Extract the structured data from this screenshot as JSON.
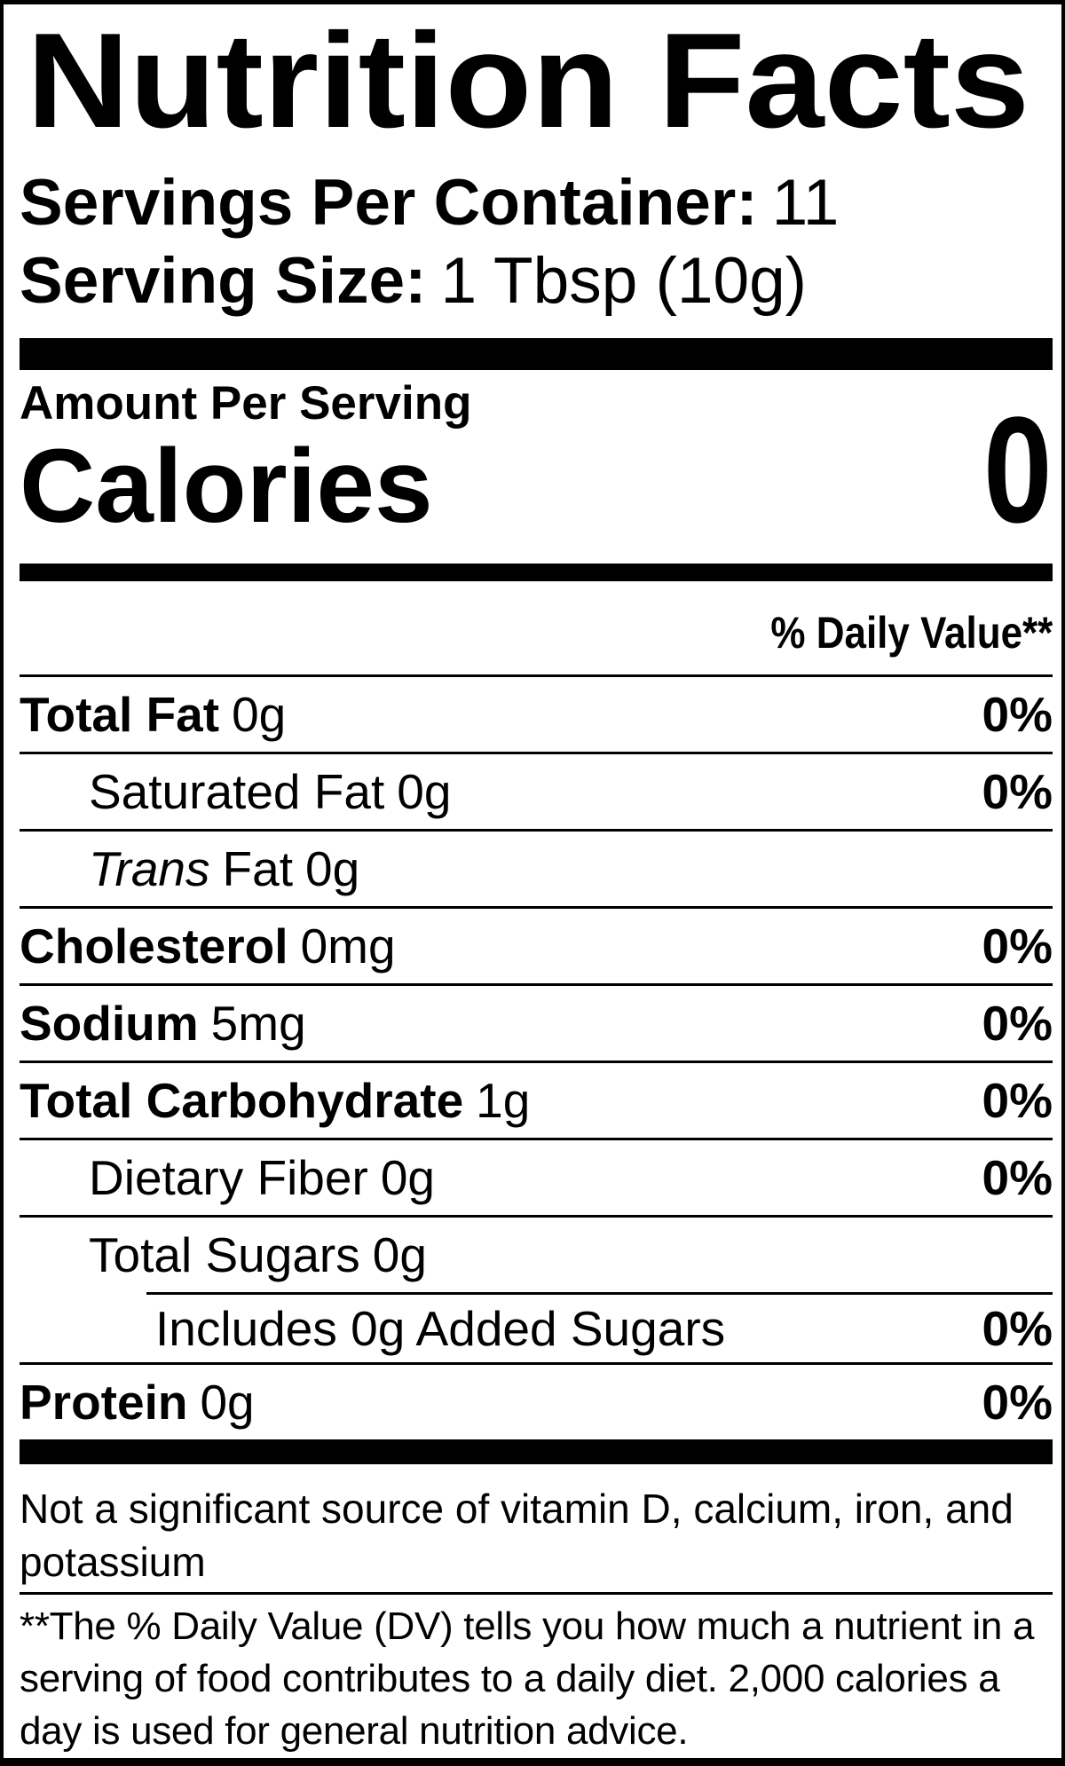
{
  "colors": {
    "text": "#000000",
    "background": "#ffffff",
    "rule": "#000000"
  },
  "header": {
    "title": "Nutrition Facts",
    "servings_per_container_label": "Servings Per Container:",
    "servings_per_container_value": "11",
    "serving_size_label": "Serving Size:",
    "serving_size_value": "1 Tbsp (10g)"
  },
  "calories_section": {
    "amount_per_serving": "Amount Per Serving",
    "calories_label": "Calories",
    "calories_value": "0"
  },
  "daily_value_header": "% Daily Value**",
  "nutrients": [
    {
      "name": "Total Fat",
      "amount": "0g",
      "daily_value": "0%"
    },
    {
      "name": "Saturated Fat",
      "amount": "0g",
      "daily_value": "0%"
    },
    {
      "name_italic": "Trans",
      "name": "Fat",
      "amount": "0g",
      "daily_value": ""
    },
    {
      "name": "Cholesterol",
      "amount": "0mg",
      "daily_value": "0%"
    },
    {
      "name": "Sodium",
      "amount": "5mg",
      "daily_value": "0%"
    },
    {
      "name": "Total Carbohydrate",
      "amount": "1g",
      "daily_value": "0%"
    },
    {
      "name": "Dietary Fiber",
      "amount": "0g",
      "daily_value": "0%"
    },
    {
      "name": "Total Sugars",
      "amount": "0g",
      "daily_value": ""
    },
    {
      "name": "Includes 0g Added Sugars",
      "amount": "",
      "daily_value": "0%"
    },
    {
      "name": "Protein",
      "amount": "0g",
      "daily_value": "0%"
    }
  ],
  "footnotes": {
    "not_significant": "Not a significant source of vitamin D, calcium, iron, and potassium",
    "daily_value_note": "**The % Daily Value (DV) tells you how much a nutrient in a serving of food contributes to a daily diet. 2,000 calories a day is used for general nutrition advice."
  }
}
